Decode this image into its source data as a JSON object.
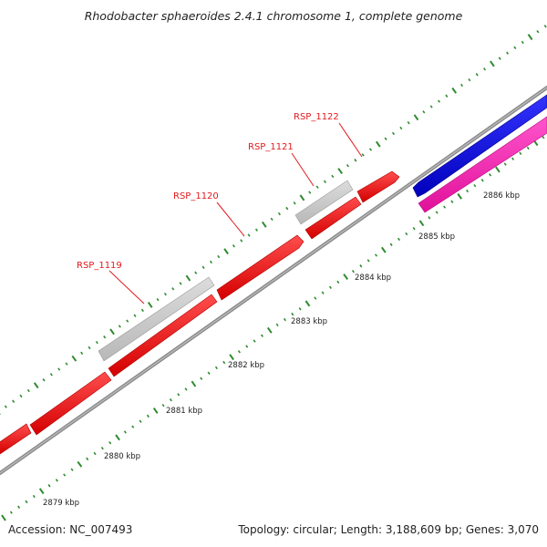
{
  "title": "Rhodobacter sphaeroides 2.4.1 chromosome 1, complete genome",
  "footer": {
    "accession": "Accession: NC_007493",
    "summary": "Topology: circular; Length: 3,188,609 bp; Genes: 3,070"
  },
  "colors": {
    "backbone": "#8a8a8a",
    "cds": "#ff0000",
    "gray_feature": "#c8c8c8",
    "blue_feature": "#0000ee",
    "magenta_feature": "#ff1fb4",
    "ticks": "#2e8b2e",
    "labels": "#e31a1c"
  },
  "kbp_ticks": [
    {
      "label": "2879 kbp"
    },
    {
      "label": "2880 kbp"
    },
    {
      "label": "2881 kbp"
    },
    {
      "label": "2882 kbp"
    },
    {
      "label": "2883 kbp"
    },
    {
      "label": "2884 kbp"
    },
    {
      "label": "2885 kbp"
    },
    {
      "label": "2886 kbp"
    }
  ],
  "gene_labels": [
    {
      "name": "RSP_1119"
    },
    {
      "name": "RSP_1120"
    },
    {
      "name": "RSP_1121"
    },
    {
      "name": "RSP_1122"
    }
  ]
}
